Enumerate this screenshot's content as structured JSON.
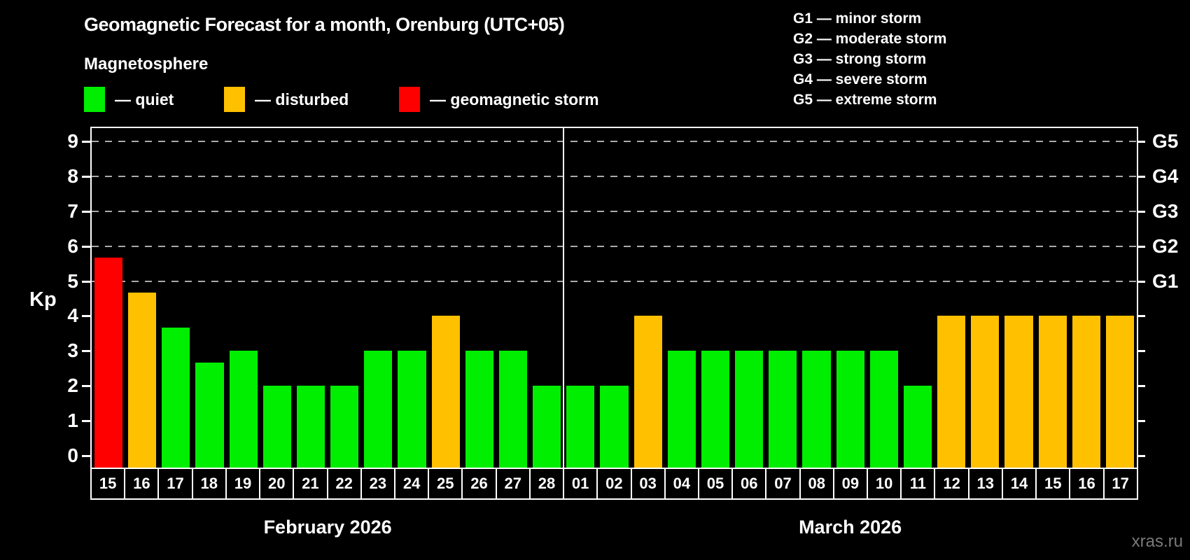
{
  "title": "Geomagnetic Forecast for a month, Orenburg (UTC+05)",
  "subtitle": "Magnetosphere",
  "legend": {
    "items": [
      {
        "key": "quiet",
        "label": "— quiet"
      },
      {
        "key": "disturbed",
        "label": "— disturbed"
      },
      {
        "key": "storm",
        "label": "— geomagnetic storm"
      }
    ]
  },
  "g_legend": [
    "G1 — minor storm",
    "G2 — moderate storm",
    "G3 — strong storm",
    "G4 — severe storm",
    "G5 — extreme storm"
  ],
  "watermark": "xras.ru",
  "chart_data": {
    "type": "bar",
    "ylabel": "Kp",
    "ylim": [
      0,
      9
    ],
    "y_ticks": [
      "0",
      "1",
      "2",
      "3",
      "4",
      "5",
      "6",
      "7",
      "8",
      "9"
    ],
    "gridlines_at_kp": [
      5,
      6,
      7,
      8,
      9
    ],
    "right_axis_labels": [
      {
        "kp": 5,
        "label": "G1"
      },
      {
        "kp": 6,
        "label": "G2"
      },
      {
        "kp": 7,
        "label": "G3"
      },
      {
        "kp": 8,
        "label": "G4"
      },
      {
        "kp": 9,
        "label": "G5"
      }
    ],
    "months": [
      {
        "label": "February 2026",
        "days": 14
      },
      {
        "label": "March 2026",
        "days": 17
      }
    ],
    "categories": [
      "15",
      "16",
      "17",
      "18",
      "19",
      "20",
      "21",
      "22",
      "23",
      "24",
      "25",
      "26",
      "27",
      "28",
      "01",
      "02",
      "03",
      "04",
      "05",
      "06",
      "07",
      "08",
      "09",
      "10",
      "11",
      "12",
      "13",
      "14",
      "15",
      "16",
      "17"
    ],
    "values": [
      5.67,
      4.67,
      3.67,
      2.67,
      3,
      2,
      2,
      2,
      3,
      3,
      4,
      3,
      3,
      2,
      2,
      2,
      4,
      3,
      3,
      3,
      3,
      3,
      3,
      3,
      2,
      4,
      4,
      4,
      4,
      4,
      4
    ],
    "statuses": [
      "storm",
      "disturbed",
      "quiet",
      "quiet",
      "quiet",
      "quiet",
      "quiet",
      "quiet",
      "quiet",
      "quiet",
      "disturbed",
      "quiet",
      "quiet",
      "quiet",
      "quiet",
      "quiet",
      "disturbed",
      "quiet",
      "quiet",
      "quiet",
      "quiet",
      "quiet",
      "quiet",
      "quiet",
      "quiet",
      "disturbed",
      "disturbed",
      "disturbed",
      "disturbed",
      "disturbed",
      "disturbed"
    ],
    "colors": {
      "quiet": "#00ee00",
      "disturbed": "#ffc000",
      "storm": "#ff0000"
    },
    "grid_color": "#aaaaaa",
    "legend_position": "top"
  }
}
